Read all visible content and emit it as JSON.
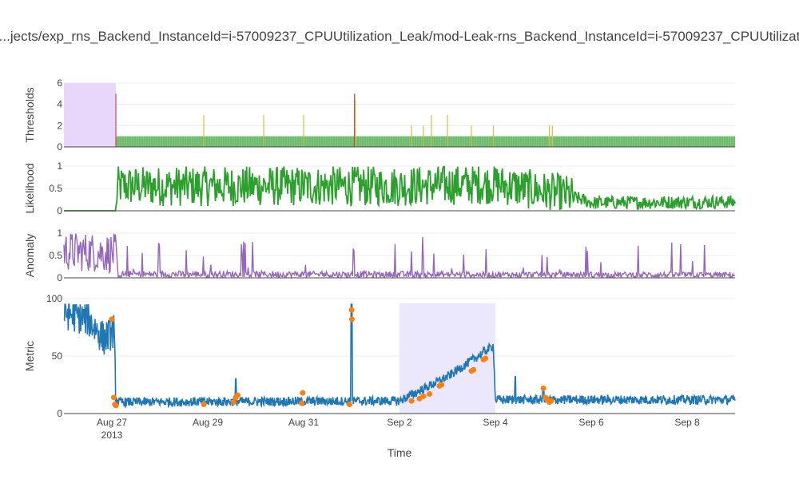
{
  "title": "...jects/exp_rns_Backend_InstanceId=i-57009237_CPUUtilization_Leak/mod-Leak-rns_Backend_InstanceId=i-57009237_CPUUtilizat",
  "xlabel": "Time",
  "colors": {
    "thresholds_fill": "#2ca02c",
    "threshold_spikes": "#d4c03a",
    "threshold_red": "#d62728",
    "likelihood": "#2ca02c",
    "anomaly": "#9467bd",
    "metric": "#1f77b4",
    "anomaly_points": "#ff7f0e",
    "probation_shade": "#e8d6fb",
    "window_shade": "#ebe7fc",
    "grid": "#eeeeee",
    "axis_line": "#444444"
  },
  "chart_data": [
    {
      "type": "bar",
      "ylabel": "Thresholds",
      "ylim": [
        0,
        6
      ],
      "yticks": [
        "0",
        "2",
        "4",
        "6"
      ],
      "shaded_region": {
        "x": [
          "2013-08-26T00:00",
          "2013-08-27T02:00"
        ],
        "label": "probation"
      },
      "baseline_band": {
        "x": [
          "2013-08-27T02:00",
          "2013-09-09T00:00"
        ],
        "value": 1
      },
      "spikes": [
        {
          "x": "2013-08-28T22:00",
          "value": 3
        },
        {
          "x": "2013-08-30T04:00",
          "value": 3
        },
        {
          "x": "2013-08-31T00:00",
          "value": 3
        },
        {
          "x": "2013-09-01T01:30",
          "value": 5
        },
        {
          "x": "2013-09-02T06:00",
          "value": 2
        },
        {
          "x": "2013-09-02T12:00",
          "value": 2
        },
        {
          "x": "2013-09-02T16:00",
          "value": 3
        },
        {
          "x": "2013-09-03T00:00",
          "value": 3
        },
        {
          "x": "2013-09-03T12:00",
          "value": 2
        },
        {
          "x": "2013-09-03T23:00",
          "value": 2
        },
        {
          "x": "2013-09-05T03:00",
          "value": 2
        },
        {
          "x": "2013-09-05T04:30",
          "value": 2
        }
      ]
    },
    {
      "type": "line",
      "ylabel": "Likelihood",
      "ylim": [
        0,
        1
      ],
      "yticks": [
        "0",
        "0.5",
        "1"
      ],
      "x_start": "2013-08-26T00:00",
      "x_end": "2013-09-09T00:00",
      "profile": [
        {
          "x": "2013-08-26T00:00",
          "value": 0
        },
        {
          "x": "2013-08-27T02:00",
          "value": 0
        },
        {
          "x": "2013-08-27T03:00",
          "value": 0.55
        },
        {
          "x": "2013-09-02T00:00",
          "value": 0.55
        },
        {
          "x": "2013-09-04T00:00",
          "value": 0.6
        },
        {
          "x": "2013-09-05T12:00",
          "value": 0.35
        },
        {
          "x": "2013-09-06T00:00",
          "value": 0.18
        },
        {
          "x": "2013-09-09T00:00",
          "value": 0.2
        }
      ]
    },
    {
      "type": "line",
      "ylabel": "Anomaly",
      "ylim": [
        0,
        1
      ],
      "yticks": [
        "0",
        "0.5",
        "1"
      ],
      "x_start": "2013-08-26T00:00",
      "x_end": "2013-09-09T00:00",
      "profile": [
        {
          "x": "2013-08-26T00:00",
          "value": 0.6
        },
        {
          "x": "2013-08-27T02:00",
          "value": 0.55
        },
        {
          "x": "2013-08-27T03:00",
          "value": 0.1
        },
        {
          "x": "2013-09-09T00:00",
          "value": 0.08
        }
      ]
    },
    {
      "type": "line",
      "ylabel": "Metric",
      "ylim": [
        0,
        100
      ],
      "yticks": [
        "0",
        "50",
        "100"
      ],
      "xlim": [
        "2013-08-26T00:00",
        "2013-09-09T00:00"
      ],
      "xticks": [
        {
          "x": "2013-08-27T00:00",
          "label": "Aug 27",
          "sublabel": "2013"
        },
        {
          "x": "2013-08-29T00:00",
          "label": "Aug 29"
        },
        {
          "x": "2013-08-31T00:00",
          "label": "Aug 31"
        },
        {
          "x": "2013-09-02T00:00",
          "label": "Sep 2"
        },
        {
          "x": "2013-09-04T00:00",
          "label": "Sep 4"
        },
        {
          "x": "2013-09-06T00:00",
          "label": "Sep 6"
        },
        {
          "x": "2013-09-08T00:00",
          "label": "Sep 8"
        }
      ],
      "shaded_window": {
        "x": [
          "2013-09-02T00:00",
          "2013-09-04T00:00"
        ],
        "label": "anomaly window"
      },
      "profile": [
        {
          "x": "2013-08-26T00:00",
          "value": 88
        },
        {
          "x": "2013-08-26T12:00",
          "value": 82
        },
        {
          "x": "2013-08-26T20:00",
          "value": 65
        },
        {
          "x": "2013-08-27T01:00",
          "value": 72
        },
        {
          "x": "2013-08-27T02:00",
          "value": 15
        },
        {
          "x": "2013-08-27T03:00",
          "value": 10
        },
        {
          "x": "2013-09-02T00:00",
          "value": 11
        },
        {
          "x": "2013-09-03T00:00",
          "value": 32
        },
        {
          "x": "2013-09-03T23:00",
          "value": 59
        },
        {
          "x": "2013-09-04T00:00",
          "value": 12
        },
        {
          "x": "2013-09-09T00:00",
          "value": 12
        }
      ],
      "spikes": [
        {
          "x": "2013-08-29T14:00",
          "value": 30
        },
        {
          "x": "2013-09-01T00:00",
          "value": 95
        },
        {
          "x": "2013-09-04T10:00",
          "value": 32
        },
        {
          "x": "2013-09-05T00:00",
          "value": 22
        }
      ],
      "anomaly_points": [
        {
          "x": "2013-08-27T00:00",
          "value": 82
        },
        {
          "x": "2013-08-27T01:00",
          "value": 14
        },
        {
          "x": "2013-08-27T01:30",
          "value": 8
        },
        {
          "x": "2013-08-27T02:00",
          "value": 7
        },
        {
          "x": "2013-08-28T22:00",
          "value": 8
        },
        {
          "x": "2013-08-29T13:00",
          "value": 10
        },
        {
          "x": "2013-08-29T14:00",
          "value": 14
        },
        {
          "x": "2013-08-29T15:00",
          "value": 16
        },
        {
          "x": "2013-08-30T23:00",
          "value": 9
        },
        {
          "x": "2013-08-30T23:30",
          "value": 18
        },
        {
          "x": "2013-09-01T00:00",
          "value": 90
        },
        {
          "x": "2013-09-01T00:10",
          "value": 82
        },
        {
          "x": "2013-08-31T23:00",
          "value": 8
        },
        {
          "x": "2013-09-02T06:00",
          "value": 11
        },
        {
          "x": "2013-09-02T10:00",
          "value": 13
        },
        {
          "x": "2013-09-02T12:00",
          "value": 15
        },
        {
          "x": "2013-09-02T15:00",
          "value": 17
        },
        {
          "x": "2013-09-02T20:00",
          "value": 24
        },
        {
          "x": "2013-09-02T21:00",
          "value": 25
        },
        {
          "x": "2013-09-03T12:00",
          "value": 37
        },
        {
          "x": "2013-09-03T13:00",
          "value": 38
        },
        {
          "x": "2013-09-03T18:00",
          "value": 47
        },
        {
          "x": "2013-09-03T19:00",
          "value": 48
        },
        {
          "x": "2013-09-05T00:00",
          "value": 22
        },
        {
          "x": "2013-09-05T01:00",
          "value": 14
        },
        {
          "x": "2013-09-05T02:00",
          "value": 12
        },
        {
          "x": "2013-09-05T03:00",
          "value": 10
        },
        {
          "x": "2013-09-05T04:00",
          "value": 11
        }
      ]
    }
  ]
}
